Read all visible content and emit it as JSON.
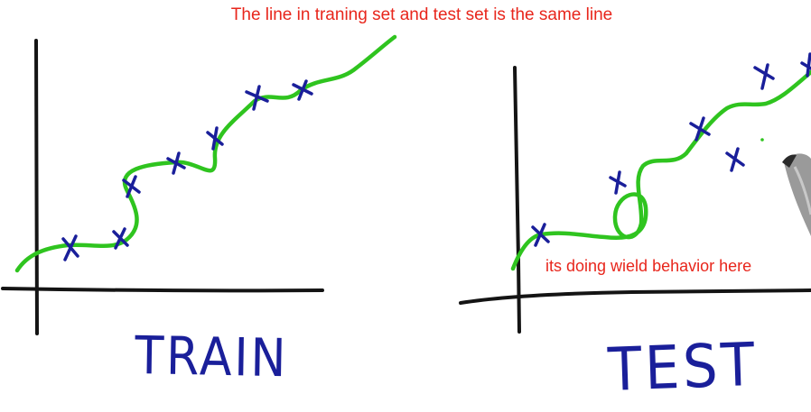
{
  "annotations": {
    "top_note": "The line in traning set and test set is the same line",
    "side_note": "its doing wield behavior here"
  },
  "panels": {
    "train": {
      "label": "TRAIN"
    },
    "test": {
      "label": "TEST"
    }
  },
  "colors": {
    "annotation_text": "#e8261c",
    "axes_ink": "#141414",
    "fit_curve": "#2fc41f",
    "points_ink": "#1a1f9a"
  }
}
